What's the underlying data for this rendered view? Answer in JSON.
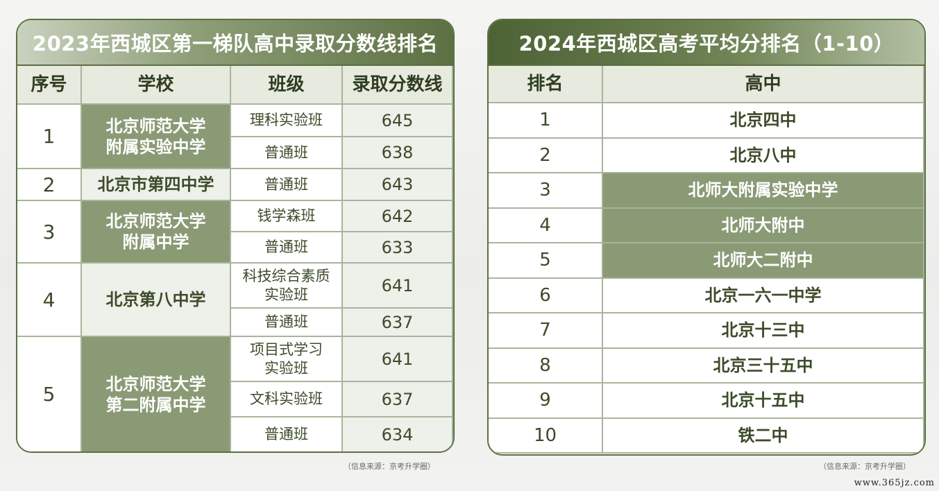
{
  "left": {
    "title": "2023年西城区第一梯队高中录取分数线排名",
    "headers": [
      "序号",
      "学校",
      "班级",
      "录取分数线"
    ],
    "groups": [
      {
        "no": "1",
        "school": "北京师范大学\n附属实验中学",
        "rows": [
          {
            "cls": "理科实验班",
            "score": "645"
          },
          {
            "cls": "普通班",
            "score": "638"
          }
        ]
      },
      {
        "no": "2",
        "school": "北京市第四中学",
        "rows": [
          {
            "cls": "普通班",
            "score": "643"
          }
        ]
      },
      {
        "no": "3",
        "school": "北京师范大学\n附属中学",
        "rows": [
          {
            "cls": "钱学森班",
            "score": "642"
          },
          {
            "cls": "普通班",
            "score": "633"
          }
        ]
      },
      {
        "no": "4",
        "school": "北京第八中学",
        "rows": [
          {
            "cls": "科技综合素质\n实验班",
            "score": "641"
          },
          {
            "cls": "普通班",
            "score": "637"
          }
        ]
      },
      {
        "no": "5",
        "school": "北京师范大学\n第二附属中学",
        "rows": [
          {
            "cls": "项目式学习\n实验班",
            "score": "641"
          },
          {
            "cls": "文科实验班",
            "score": "637"
          },
          {
            "cls": "普通班",
            "score": "634"
          }
        ]
      }
    ],
    "source": "（信息来源：京考升学圈）"
  },
  "right": {
    "title": "2024年西城区高考平均分排名（1-10）",
    "headers": [
      "排名",
      "高中"
    ],
    "rows": [
      {
        "rank": "1",
        "school": "北京四中"
      },
      {
        "rank": "2",
        "school": "北京八中"
      },
      {
        "rank": "3",
        "school": "北师大附属实验中学"
      },
      {
        "rank": "4",
        "school": "北师大附中"
      },
      {
        "rank": "5",
        "school": "北师大二附中"
      },
      {
        "rank": "6",
        "school": "北京一六一中学"
      },
      {
        "rank": "7",
        "school": "北京十三中"
      },
      {
        "rank": "8",
        "school": "北京三十五中"
      },
      {
        "rank": "9",
        "school": "北京十五中"
      },
      {
        "rank": "10",
        "school": "铁二中"
      }
    ],
    "source": "（信息来源：京考升学圈）"
  },
  "watermark": "www.365jz.com",
  "colors": {
    "frame": "#5b7040",
    "highlight": "#8a9a75",
    "header_bg": "#e7eadf"
  }
}
